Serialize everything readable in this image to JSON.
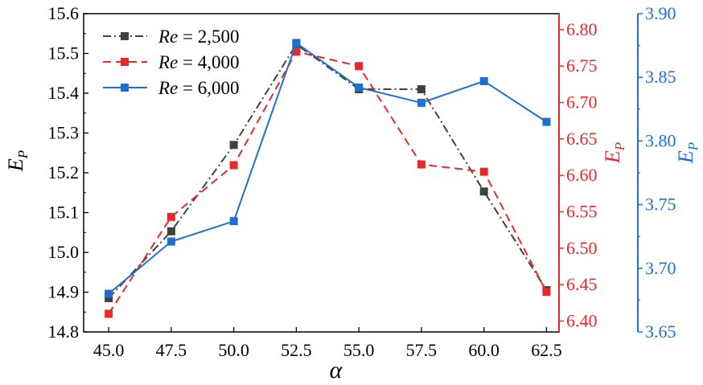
{
  "chart_data": {
    "type": "line",
    "xlabel": "α",
    "x": [
      45.0,
      47.5,
      50.0,
      52.5,
      55.0,
      57.5,
      60.0,
      62.5
    ],
    "x_ticks": [
      "45.0",
      "47.5",
      "50.0",
      "52.5",
      "55.0",
      "57.5",
      "60.0",
      "62.5"
    ],
    "xlim": [
      44.0,
      63.0
    ],
    "axes": {
      "left": {
        "label": "E",
        "label_sub": "P",
        "ylim": [
          14.8,
          15.6
        ],
        "ticks": [
          "14.8",
          "14.9",
          "15.0",
          "15.1",
          "15.2",
          "15.3",
          "15.4",
          "15.5",
          "15.6"
        ],
        "color": "#000000"
      },
      "right1": {
        "label": "E",
        "label_sub": "P",
        "ylim": [
          6.385,
          6.822
        ],
        "ticks": [
          "6.40",
          "6.45",
          "6.50",
          "6.55",
          "6.60",
          "6.65",
          "6.70",
          "6.75",
          "6.80"
        ],
        "color": "#e8292a"
      },
      "right2": {
        "label": "E",
        "label_sub": "P",
        "ylim": [
          3.65,
          3.9
        ],
        "ticks": [
          "3.65",
          "3.70",
          "3.75",
          "3.80",
          "3.85",
          "3.90"
        ],
        "color": "#1f6fd0"
      }
    },
    "series": [
      {
        "name": "Re = 2,500",
        "name_italic": "Re",
        "name_rest": " = 2,500",
        "axis": "left",
        "color": "#404040",
        "style": "dashdot",
        "values": [
          14.885,
          15.053,
          15.27,
          15.523,
          15.41,
          15.41,
          15.153,
          14.905
        ]
      },
      {
        "name": "Re = 4,000",
        "name_italic": "Re",
        "name_rest": " = 4,000",
        "axis": "right1",
        "color": "#e8292a",
        "style": "dash",
        "values": [
          6.41,
          6.543,
          6.614,
          6.77,
          6.75,
          6.615,
          6.605,
          6.44
        ]
      },
      {
        "name": "Re = 6,000",
        "name_italic": "Re",
        "name_rest": " = 6,000",
        "axis": "right2",
        "color": "#1f6fd0",
        "style": "solid",
        "values": [
          3.68,
          3.721,
          3.737,
          3.877,
          3.842,
          3.83,
          3.847,
          3.815
        ]
      }
    ],
    "legend_position": "top-left",
    "grid": false
  }
}
